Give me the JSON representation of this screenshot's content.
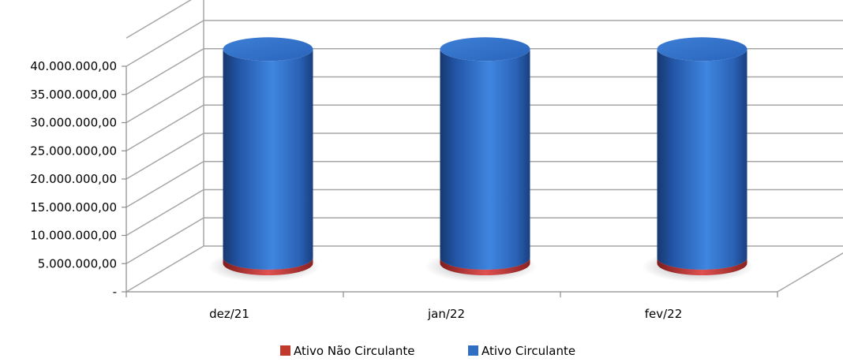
{
  "chart_data": {
    "type": "bar",
    "style": "3d-stacked-cylinder",
    "categories": [
      "dez/21",
      "jan/22",
      "fev/22"
    ],
    "series": [
      {
        "name": "Ativo Não Circulante",
        "values": [
          1000000,
          1000000,
          1000000
        ],
        "color": "#c0392b"
      },
      {
        "name": "Ativo Circulante",
        "values": [
          37000000,
          37000000,
          37000000
        ],
        "color": "#2e6fc4"
      }
    ],
    "y_tick_labels": [
      "-",
      "5.000.000,00",
      "10.000.000,00",
      "15.000.000,00",
      "20.000.000,00",
      "25.000.000,00",
      "30.000.000,00",
      "35.000.000,00",
      "40.000.000,00"
    ],
    "ylim": [
      0,
      45000000
    ],
    "grid": true,
    "legend_position": "bottom"
  }
}
